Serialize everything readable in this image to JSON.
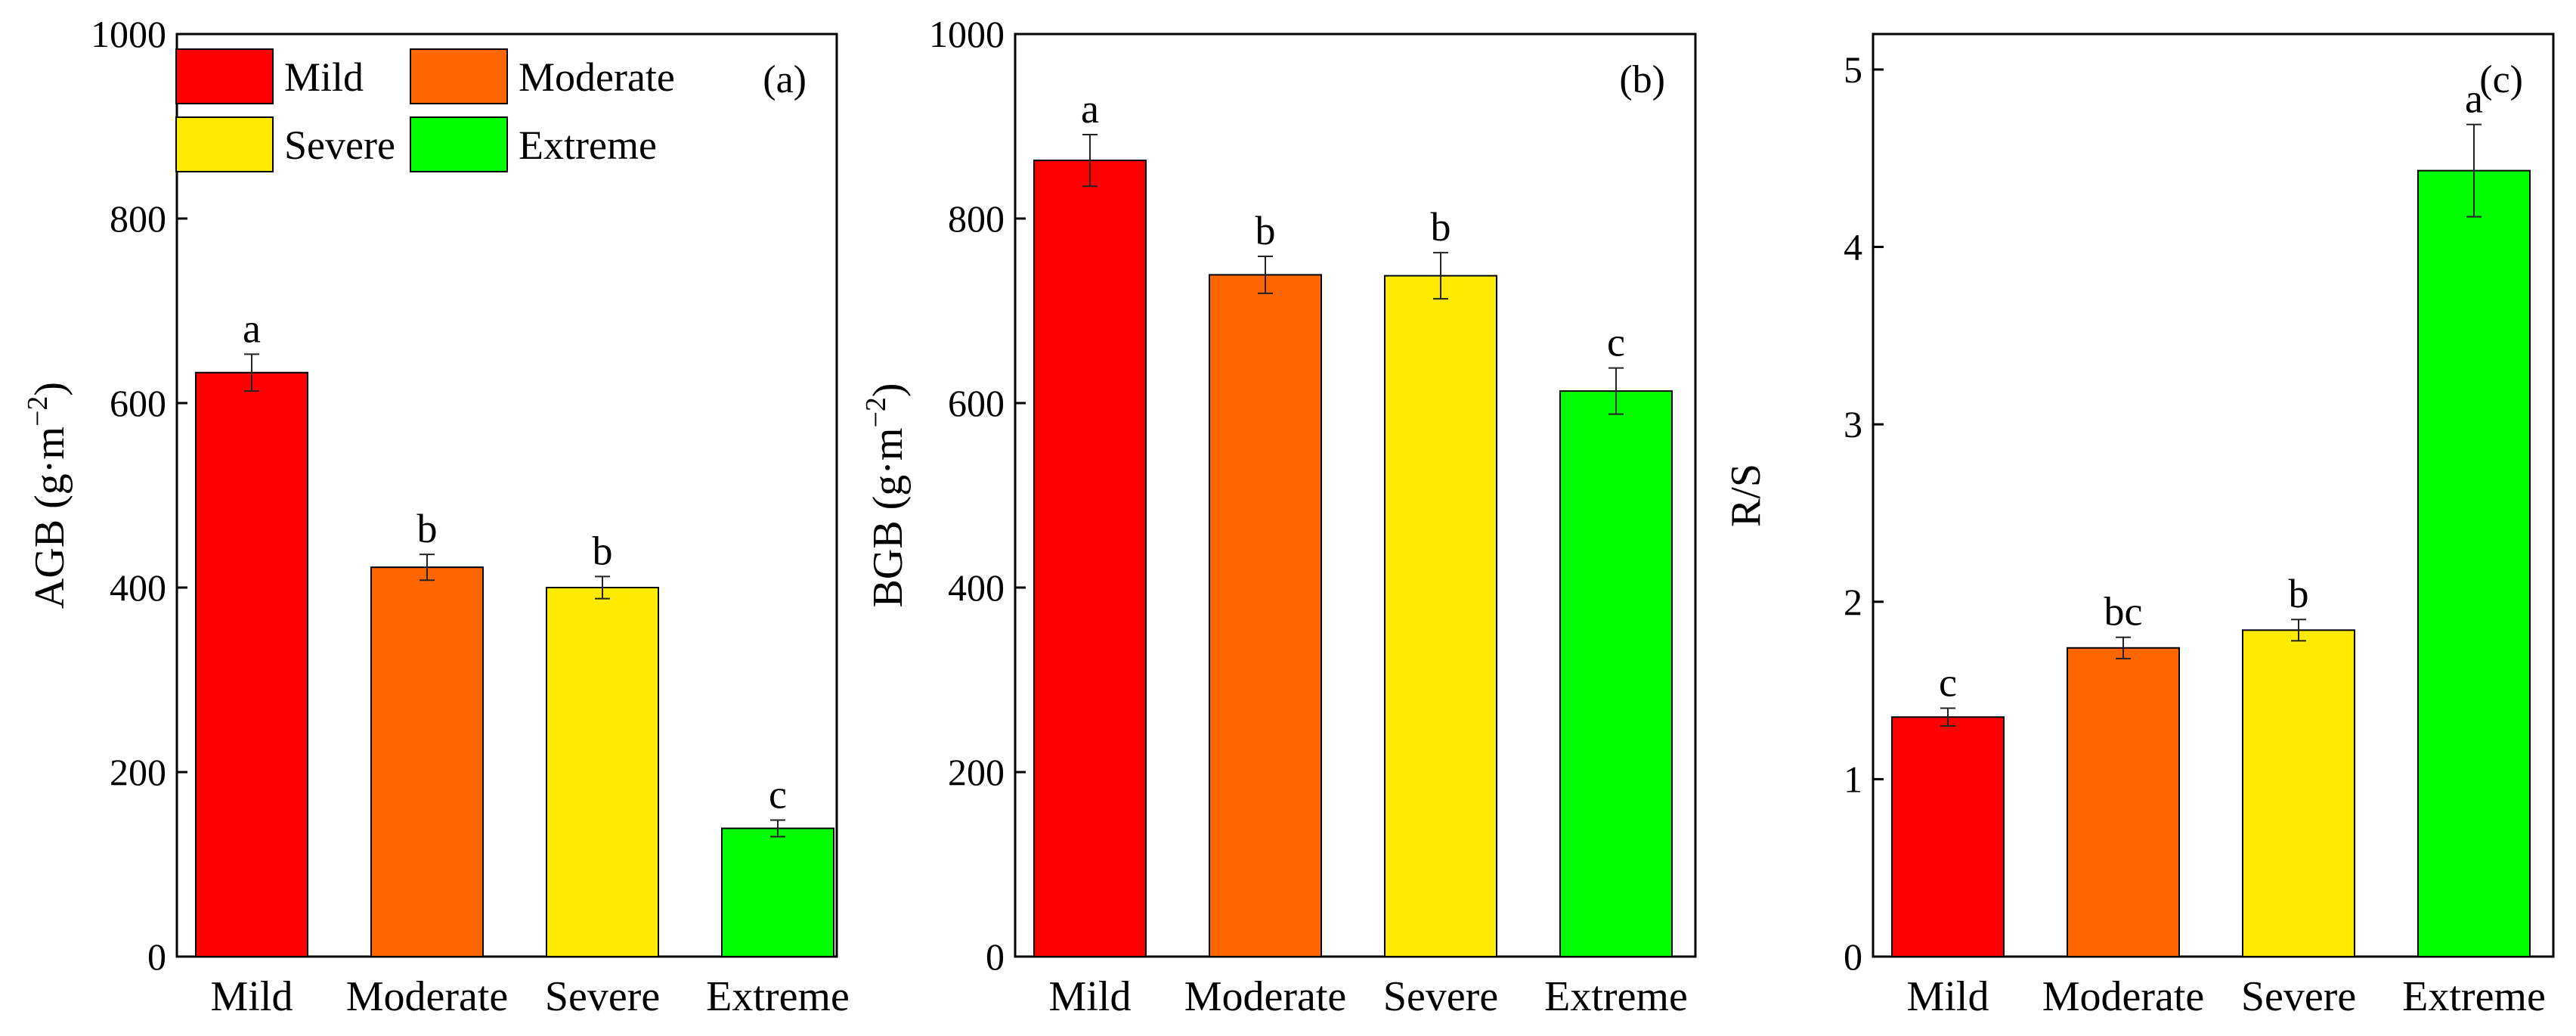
{
  "colors": {
    "mild": "#ff0000",
    "moderate": "#ff6600",
    "severe": "#ffea00",
    "extreme": "#00ff00",
    "axis": "#000000"
  },
  "legend": {
    "entries": [
      {
        "label": "Mild",
        "color_key": "mild"
      },
      {
        "label": "Moderate",
        "color_key": "moderate"
      },
      {
        "label": "Severe",
        "color_key": "severe"
      },
      {
        "label": "Extreme",
        "color_key": "extreme"
      }
    ]
  },
  "chart_data": [
    {
      "type": "bar",
      "panel_label": "(a)",
      "ylabel_main": "AGB (g·m",
      "ylabel_sup": "−2",
      "ylabel_tail": ")",
      "categories": [
        "Mild",
        "Moderate",
        "Severe",
        "Extreme"
      ],
      "values": [
        633,
        422,
        400,
        139
      ],
      "errors": [
        20,
        14,
        12,
        9
      ],
      "significance": [
        "a",
        "b",
        "b",
        "c"
      ],
      "ylim": [
        0,
        1000
      ],
      "yticks": [
        0,
        200,
        400,
        600,
        800,
        1000
      ],
      "legend_position": "top-left"
    },
    {
      "type": "bar",
      "panel_label": "(b)",
      "ylabel_main": "BGB (g·m",
      "ylabel_sup": "−2",
      "ylabel_tail": ")",
      "categories": [
        "Mild",
        "Moderate",
        "Severe",
        "Extreme"
      ],
      "values": [
        863,
        739,
        738,
        613
      ],
      "errors": [
        28,
        20,
        25,
        25
      ],
      "significance": [
        "a",
        "b",
        "b",
        "c"
      ],
      "ylim": [
        0,
        1000
      ],
      "yticks": [
        0,
        200,
        400,
        600,
        800,
        1000
      ]
    },
    {
      "type": "bar",
      "panel_label": "(c)",
      "ylabel_main": "R/S",
      "ylabel_sup": "",
      "ylabel_tail": "",
      "categories": [
        "Mild",
        "Moderate",
        "Severe",
        "Extreme"
      ],
      "values": [
        1.35,
        1.74,
        1.84,
        4.43
      ],
      "errors": [
        0.05,
        0.06,
        0.06,
        0.26
      ],
      "significance": [
        "c",
        "bc",
        "b",
        "a"
      ],
      "ylim": [
        0,
        5.2
      ],
      "yticks": [
        0,
        1,
        2,
        3,
        4,
        5
      ]
    }
  ]
}
